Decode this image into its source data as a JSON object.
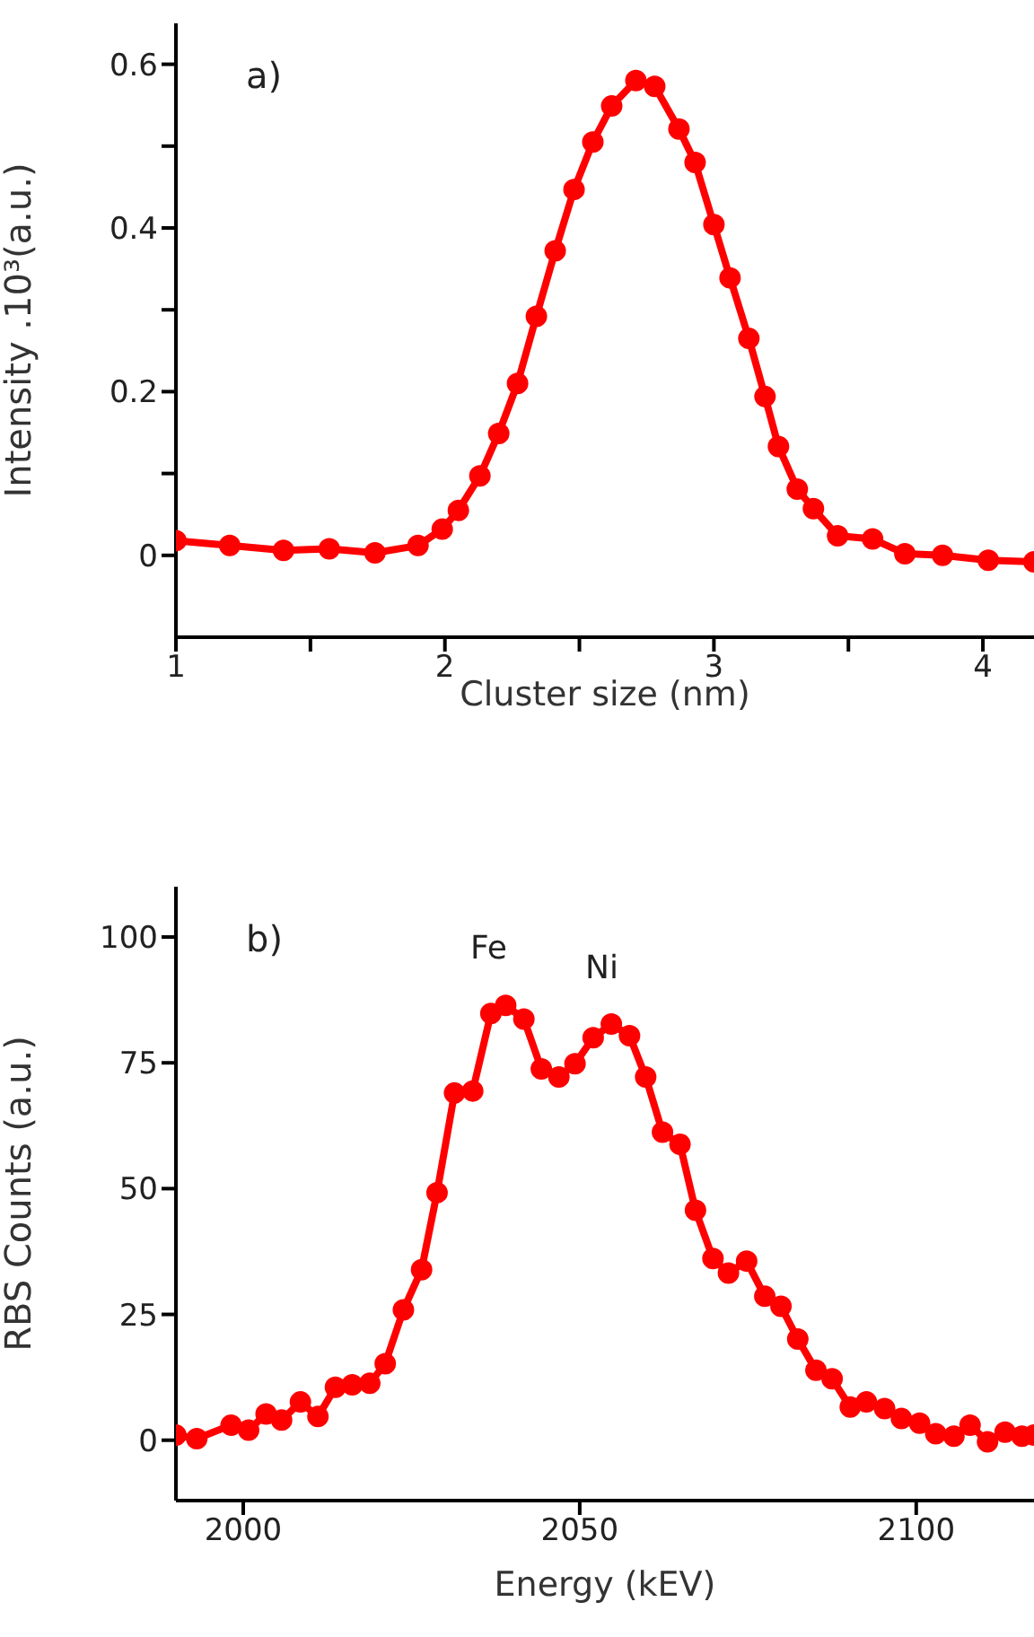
{
  "chart_data": [
    {
      "type": "line",
      "xlabel": "Cluster size (nm)",
      "ylabel": "Intensity .10³(a.u.)",
      "annotations": [
        "a)"
      ],
      "xlim": [
        1,
        4.19
      ],
      "xticks": [
        1,
        {
          "value": 1.5,
          "label": null
        },
        2,
        {
          "value": 2.5,
          "label": null
        },
        3,
        {
          "value": 3.5,
          "label": null
        },
        4
      ],
      "ylim": [
        -0.1,
        0.65
      ],
      "yticks": [
        0,
        {
          "value": 0.1,
          "label": null
        },
        0.2,
        {
          "value": 0.3,
          "label": null
        },
        0.4,
        {
          "value": 0.5,
          "label": null
        },
        0.6
      ],
      "grid": false,
      "legend": false,
      "marker": "circle",
      "line_style": "solid",
      "x": [
        1,
        1.2,
        1.4,
        1.57,
        1.74,
        1.9,
        1.99,
        2.05,
        2.13,
        2.2,
        2.27,
        2.34,
        2.41,
        2.48,
        2.55,
        2.62,
        2.71,
        2.78,
        2.87,
        2.93,
        3.0,
        3.06,
        3.13,
        3.19,
        3.24,
        3.31,
        3.37,
        3.46,
        3.59,
        3.71,
        3.85,
        4.02,
        4.19
      ],
      "series": [
        {
          "color": "#ff0000",
          "values": [
            0.018,
            0.012,
            0.006,
            0.008,
            0.003,
            0.012,
            0.032,
            0.055,
            0.097,
            0.149,
            0.21,
            0.292,
            0.372,
            0.447,
            0.505,
            0.549,
            0.58,
            0.573,
            0.521,
            0.48,
            0.404,
            0.339,
            0.265,
            0.194,
            0.133,
            0.081,
            0.057,
            0.024,
            0.02,
            0.002,
            0,
            -0.006,
            -0.008
          ]
        }
      ]
    },
    {
      "type": "line",
      "xlabel": "Energy (kEV)",
      "ylabel": "RBS Counts (a.u.)",
      "annotations": [
        "b)",
        "Fe",
        "Ni"
      ],
      "xlim": [
        1990,
        2117.5
      ],
      "xticks": [
        2000,
        2050,
        2100
      ],
      "ylim": [
        -12,
        110
      ],
      "yticks": [
        0,
        25,
        50,
        75,
        100
      ],
      "grid": false,
      "legend": false,
      "marker": "circle",
      "line_style": "solid",
      "x": [
        1990,
        1993.1,
        1998.2,
        2000.8,
        2003.4,
        2005.7,
        2008.5,
        2011.1,
        2013.7,
        2016.2,
        2018.8,
        2021.1,
        2023.8,
        2026.5,
        2028.8,
        2031.4,
        2034.1,
        2036.8,
        2039,
        2041.7,
        2044.3,
        2046.9,
        2049.3,
        2052,
        2054.7,
        2057.4,
        2059.8,
        2062.3,
        2064.9,
        2067.2,
        2069.8,
        2072.1,
        2074.8,
        2077.5,
        2079.9,
        2082.4,
        2085.1,
        2087.5,
        2090.2,
        2092.6,
        2095.3,
        2097.8,
        2100.5,
        2102.9,
        2105.6,
        2108,
        2110.6,
        2113.2,
        2115.7,
        2117.5
      ],
      "series": [
        {
          "color": "#ff0000",
          "values": [
            1,
            0.3,
            3,
            2,
            5.2,
            4,
            7.6,
            4.7,
            10.5,
            11,
            11.3,
            15.2,
            25.9,
            33.9,
            49.2,
            69,
            69.4,
            84.8,
            86.4,
            83.7,
            73.8,
            72.2,
            74.8,
            80,
            82.7,
            80.4,
            72.2,
            61.2,
            58.8,
            45.7,
            36.1,
            33.2,
            35.6,
            28.6,
            26.6,
            20.1,
            13.9,
            12.2,
            6.6,
            7.6,
            6.3,
            4.3,
            3.4,
            1.3,
            0.8,
            3,
            -0.3,
            1.6,
            0.8,
            1
          ]
        }
      ]
    }
  ]
}
